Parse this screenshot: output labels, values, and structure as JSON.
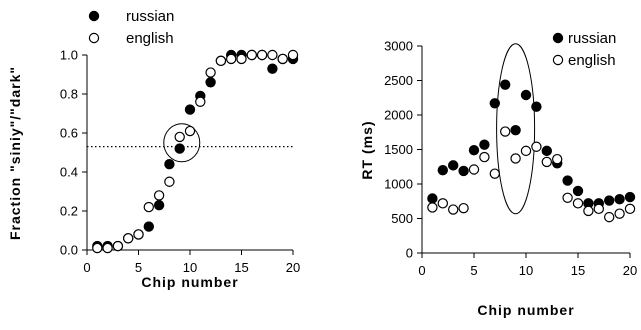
{
  "chart_data": [
    {
      "type": "scatter",
      "title": "",
      "xlabel": "Chip number",
      "ylabel": "Fraction \"siniy\"/\"dark\"",
      "xlim": [
        0,
        20
      ],
      "ylim": [
        0,
        1.0
      ],
      "x_ticks": [
        "0",
        "5",
        "10",
        "15",
        "20"
      ],
      "y_ticks": [
        "0.0",
        "0.2",
        "0.4",
        "0.6",
        "0.8",
        "1.0"
      ],
      "grid": false,
      "legend_position": "top-left",
      "reference_line": {
        "y": 0.53,
        "style": "dotted"
      },
      "highlight_ellipse": {
        "cx": 9.2,
        "cy": 0.55
      },
      "series": [
        {
          "name": "russian",
          "marker": "filled-circle",
          "x": [
            1,
            2,
            3,
            4,
            5,
            6,
            7,
            8,
            9,
            10,
            11,
            12,
            13,
            14,
            15,
            16,
            17,
            18,
            19,
            20
          ],
          "y": [
            0.02,
            0.02,
            0.02,
            0.06,
            0.08,
            0.12,
            0.23,
            0.44,
            0.52,
            0.72,
            0.79,
            0.86,
            0.97,
            1.0,
            1.0,
            1.0,
            1.0,
            0.93,
            0.98,
            0.98
          ]
        },
        {
          "name": "english",
          "marker": "open-circle",
          "x": [
            1,
            2,
            3,
            4,
            5,
            6,
            7,
            8,
            9,
            10,
            11,
            12,
            13,
            14,
            15,
            16,
            17,
            18,
            19,
            20
          ],
          "y": [
            0.01,
            0.01,
            0.02,
            0.06,
            0.08,
            0.22,
            0.28,
            0.35,
            0.58,
            0.61,
            0.76,
            0.91,
            0.97,
            0.98,
            0.98,
            1.0,
            1.0,
            1.0,
            0.98,
            1.0
          ]
        }
      ]
    },
    {
      "type": "scatter",
      "title": "",
      "xlabel": "Chip number",
      "ylabel": "RT (ms)",
      "xlim": [
        0,
        20
      ],
      "ylim": [
        0,
        3000
      ],
      "x_ticks": [
        "0",
        "5",
        "10",
        "15",
        "20"
      ],
      "y_ticks": [
        "0",
        "500",
        "1000",
        "1500",
        "2000",
        "2500",
        "3000"
      ],
      "grid": false,
      "legend_position": "top-right",
      "highlight_ellipse": {
        "cx": 9,
        "cy": 1800
      },
      "series": [
        {
          "name": "russian",
          "marker": "filled-circle",
          "x": [
            1,
            2,
            3,
            4,
            5,
            6,
            7,
            8,
            9,
            10,
            11,
            12,
            13,
            14,
            15,
            16,
            17,
            18,
            19,
            20
          ],
          "y": [
            790,
            1200,
            1270,
            1190,
            1490,
            1570,
            2170,
            2440,
            1780,
            2290,
            2120,
            1480,
            1300,
            1050,
            900,
            720,
            720,
            760,
            780,
            810
          ]
        },
        {
          "name": "english",
          "marker": "open-circle",
          "x": [
            1,
            2,
            3,
            4,
            5,
            6,
            7,
            8,
            9,
            10,
            11,
            12,
            13,
            14,
            15,
            16,
            17,
            18,
            19,
            20
          ],
          "y": [
            660,
            720,
            630,
            650,
            1210,
            1390,
            1150,
            1760,
            1370,
            1480,
            1540,
            1320,
            1360,
            800,
            720,
            610,
            640,
            520,
            570,
            640
          ]
        }
      ]
    }
  ]
}
